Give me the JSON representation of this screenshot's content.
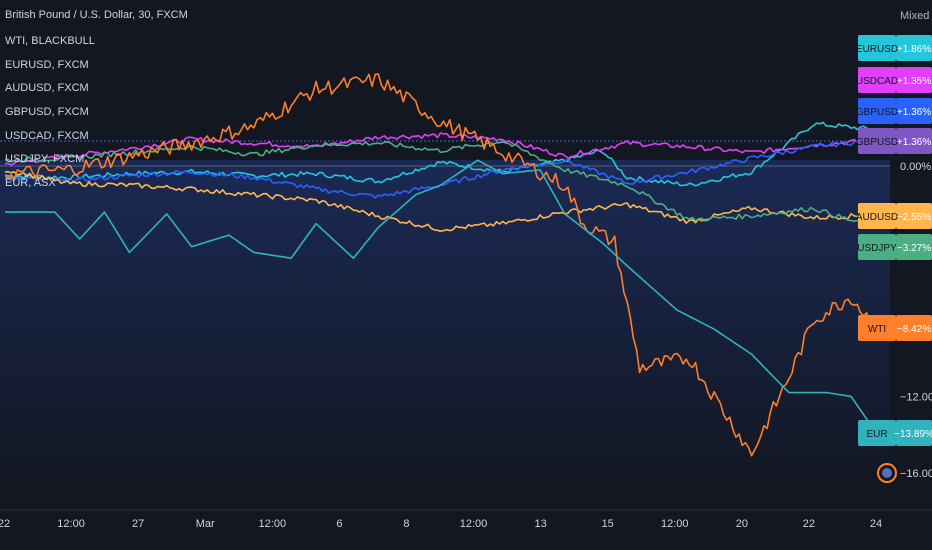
{
  "header": {
    "mode_label": "Mixed"
  },
  "legend": [
    "British Pound / U.S. Dollar, 30, FXCM",
    "WTI, BLACKBULL",
    "EURUSD, FXCM",
    "AUDUSD, FXCM",
    "GBPUSD, FXCM",
    "USDCAD, FXCM",
    "USDJPY, FXCM",
    "EUR, ASX"
  ],
  "colors": {
    "background_top": "#1b2a55",
    "background_bottom": "#131722",
    "text": "#d1d4dc",
    "gridline": "#2a2e39"
  },
  "chart_data": {
    "type": "line",
    "title": "British Pound / U.S. Dollar, 30, FXCM",
    "ylabel": "",
    "y_unit": "%",
    "ylim": [
      -17,
      7
    ],
    "y_ticks": [
      {
        "value": 0,
        "label": "0.00%"
      },
      {
        "value": -12,
        "label": "−12.00%"
      },
      {
        "value": -16,
        "label": "−16.00%"
      }
    ],
    "x_ticks": [
      "22",
      "12:00",
      "27",
      "Mar",
      "12:00",
      "6",
      "8",
      "12:00",
      "13",
      "15",
      "12:00",
      "20",
      "22",
      "24"
    ],
    "x_range": [
      0,
      14
    ],
    "series": [
      {
        "name": "EURUSD",
        "color": "#26c6da",
        "points": [
          [
            0,
            -0.5
          ],
          [
            1,
            -0.6
          ],
          [
            2,
            -0.4
          ],
          [
            3,
            -0.3
          ],
          [
            4,
            -0.5
          ],
          [
            5,
            -0.4
          ],
          [
            6,
            -0.8
          ],
          [
            7,
            0.2
          ],
          [
            8,
            -0.3
          ],
          [
            9,
            0.3
          ],
          [
            9.6,
            0.8
          ],
          [
            10,
            -0.6
          ],
          [
            11,
            -1.0
          ],
          [
            12,
            -0.3
          ],
          [
            13,
            2.2
          ],
          [
            14,
            1.9
          ]
        ]
      },
      {
        "name": "USDCAD",
        "color": "#e040fb",
        "points": [
          [
            0,
            0.1
          ],
          [
            1,
            0.5
          ],
          [
            2,
            0.9
          ],
          [
            3,
            1.4
          ],
          [
            4,
            1.2
          ],
          [
            5,
            1.0
          ],
          [
            6,
            1.5
          ],
          [
            7,
            1.6
          ],
          [
            8,
            1.4
          ],
          [
            9,
            0.5
          ],
          [
            10,
            1.2
          ],
          [
            11,
            1.0
          ],
          [
            12,
            0.7
          ],
          [
            13,
            1.1
          ],
          [
            14,
            1.35
          ]
        ]
      },
      {
        "name": "GBPUSD",
        "color": "#2962ff",
        "points": [
          [
            0,
            -0.6
          ],
          [
            1,
            -0.8
          ],
          [
            2,
            -0.5
          ],
          [
            3,
            -0.3
          ],
          [
            4,
            -0.6
          ],
          [
            5,
            -1.2
          ],
          [
            6,
            -1.6
          ],
          [
            7,
            -1.0
          ],
          [
            8,
            -0.2
          ],
          [
            9,
            0.3
          ],
          [
            10,
            -0.9
          ],
          [
            11,
            -0.3
          ],
          [
            12,
            0.4
          ],
          [
            13,
            1.0
          ],
          [
            14,
            1.36
          ]
        ]
      },
      {
        "name": "AUDUSD",
        "color": "#ffb74d",
        "points": [
          [
            0,
            -0.2
          ],
          [
            1,
            -0.9
          ],
          [
            2,
            -1.0
          ],
          [
            3,
            -1.2
          ],
          [
            4,
            -1.5
          ],
          [
            5,
            -1.8
          ],
          [
            6,
            -2.6
          ],
          [
            7,
            -3.3
          ],
          [
            8,
            -3.0
          ],
          [
            9,
            -2.4
          ],
          [
            10,
            -2.0
          ],
          [
            11,
            -2.9
          ],
          [
            12,
            -2.2
          ],
          [
            13,
            -2.7
          ],
          [
            14,
            -2.55
          ]
        ]
      },
      {
        "name": "USDJPY",
        "color": "#4caf83",
        "points": [
          [
            0,
            0.3
          ],
          [
            1,
            0.4
          ],
          [
            2,
            0.7
          ],
          [
            3,
            1.0
          ],
          [
            4,
            0.6
          ],
          [
            5,
            1.1
          ],
          [
            6,
            1.2
          ],
          [
            7,
            0.8
          ],
          [
            8,
            1.3
          ],
          [
            9,
            -0.2
          ],
          [
            10,
            -1.0
          ],
          [
            11,
            -2.8
          ],
          [
            12,
            -2.6
          ],
          [
            13,
            -2.2
          ],
          [
            14,
            -3.27
          ]
        ]
      },
      {
        "name": "WTI",
        "color": "#ff7f2a",
        "points": [
          [
            0,
            -0.4
          ],
          [
            1,
            -0.2
          ],
          [
            2,
            0.5
          ],
          [
            3,
            1.2
          ],
          [
            4,
            2.1
          ],
          [
            5,
            4.0
          ],
          [
            6,
            4.5
          ],
          [
            7,
            2.3
          ],
          [
            8,
            0.7
          ],
          [
            9,
            -1.0
          ],
          [
            9.3,
            -3.0
          ],
          [
            9.8,
            -4.0
          ],
          [
            10.2,
            -10.5
          ],
          [
            11,
            -10.0
          ],
          [
            12,
            -15.0
          ],
          [
            12.6,
            -11.0
          ],
          [
            13,
            -8.0
          ],
          [
            13.6,
            -6.8
          ],
          [
            14,
            -8.42
          ]
        ]
      },
      {
        "name": "EUR",
        "color": "#30b3bd",
        "points": [
          [
            0,
            -2.4
          ],
          [
            0.8,
            -2.4
          ],
          [
            1.2,
            -3.8
          ],
          [
            1.6,
            -2.4
          ],
          [
            2.0,
            -4.5
          ],
          [
            2.6,
            -2.5
          ],
          [
            3.0,
            -4.2
          ],
          [
            3.6,
            -3.6
          ],
          [
            4.0,
            -4.5
          ],
          [
            4.6,
            -4.8
          ],
          [
            5.0,
            -3.0
          ],
          [
            5.6,
            -4.8
          ],
          [
            6.0,
            -3.2
          ],
          [
            6.6,
            -1.5
          ],
          [
            7.0,
            -1.0
          ],
          [
            7.6,
            0.3
          ],
          [
            8.0,
            -0.4
          ],
          [
            8.6,
            -0.2
          ],
          [
            9.0,
            -2.5
          ],
          [
            9.6,
            -4.0
          ],
          [
            10.0,
            -5.2
          ],
          [
            10.8,
            -7.5
          ],
          [
            11.4,
            -8.5
          ],
          [
            12.0,
            -9.8
          ],
          [
            12.6,
            -11.8
          ],
          [
            13.2,
            -11.8
          ],
          [
            13.6,
            -12.0
          ],
          [
            14,
            -13.89
          ]
        ]
      }
    ],
    "price_labels": [
      {
        "series": "EURUSD",
        "value_label": "+1.86%",
        "color": "#26c6da"
      },
      {
        "series": "USDCAD",
        "value_label": "+1.35%",
        "color": "#e040fb"
      },
      {
        "series": "GBPUSD",
        "value_label": "+1.36%",
        "color": "#2962ff"
      },
      {
        "series": "GBPUSD",
        "value_label": "+1.36%",
        "color": "#7e57c2"
      },
      {
        "series": "AUDUSD",
        "value_label": "−2.55%",
        "color": "#ffb74d"
      },
      {
        "series": "USDJPY",
        "value_label": "−3.27%",
        "color": "#4caf83"
      },
      {
        "series": "WTI",
        "value_label": "−8.42%",
        "color": "#ff7f2a"
      },
      {
        "series": "EUR",
        "value_label": "−13.89%",
        "color": "#30b3bd"
      }
    ]
  }
}
